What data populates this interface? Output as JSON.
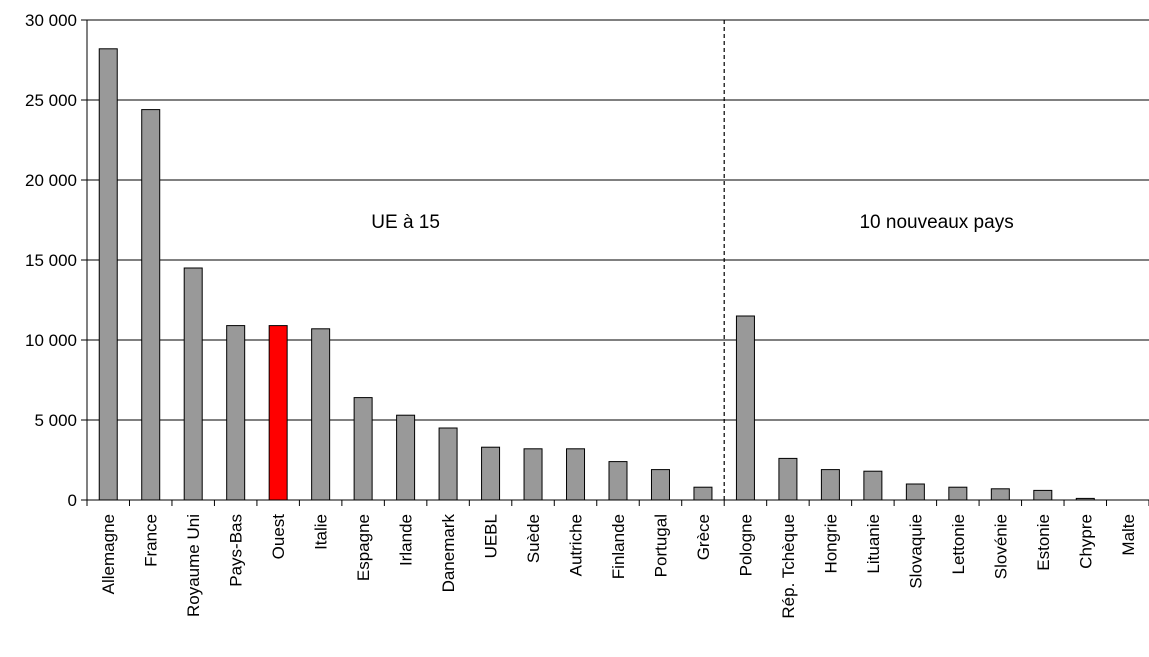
{
  "chart_data": {
    "type": "bar",
    "ylim": [
      0,
      30000
    ],
    "yticks": [
      0,
      5000,
      10000,
      15000,
      20000,
      25000,
      30000
    ],
    "ytick_labels": [
      "0",
      "5 000",
      "10 000",
      "15 000",
      "20 000",
      "25 000",
      "30 000"
    ],
    "grid": "horizontal",
    "categories": [
      "Allemagne",
      "France",
      "Royaume Uni",
      "Pays-Bas",
      "Ouest",
      "Italie",
      "Espagne",
      "Irlande",
      "Danemark",
      "UEBL",
      "Suède",
      "Autriche",
      "Finlande",
      "Portugal",
      "Grèce",
      "Pologne",
      "Rép. Tchèque",
      "Hongrie",
      "Lituanie",
      "Slovaquie",
      "Lettonie",
      "Slovénie",
      "Estonie",
      "Chypre",
      "Malte"
    ],
    "values": [
      28200,
      24400,
      14500,
      10900,
      10900,
      10700,
      6400,
      5300,
      4500,
      3300,
      3200,
      3200,
      2400,
      1900,
      800,
      11500,
      2600,
      1900,
      1800,
      1000,
      800,
      700,
      600,
      100,
      0
    ],
    "highlight_index": 4,
    "colors": {
      "bar": "#999999",
      "highlight": "#ff0000",
      "grid": "#000000"
    },
    "divider_after_index": 14,
    "groups": [
      {
        "label": "UE à 15"
      },
      {
        "label": "10 nouveaux pays"
      }
    ]
  }
}
